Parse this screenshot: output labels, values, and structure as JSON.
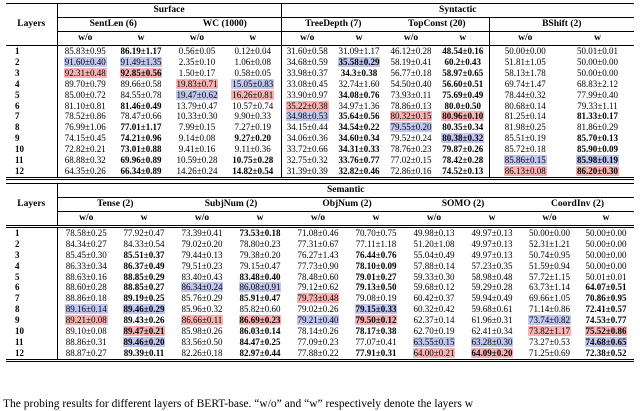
{
  "colors": {
    "highlight_red": "#f7b3b3",
    "highlight_blue": "#c1c7ee"
  },
  "caption": "The probing results for different layers of BERT-base. “w/o” and “w” respectively denote the layers w",
  "table_top": {
    "layers_label": "Layers",
    "groups": [
      {
        "label": "Surface"
      },
      {
        "label": "Syntactic"
      }
    ],
    "tasks": [
      "SentLen (6)",
      "WC (1000)",
      "TreeDepth (7)",
      "TopConst (20)",
      "BShift (2)"
    ],
    "subcols": [
      "w/o",
      "w"
    ],
    "rows": [
      {
        "layer": "1",
        "cells": [
          [
            "85.83±0.95",
            ""
          ],
          [
            "86.19±1.17",
            "b"
          ],
          [
            "0.56±0.05",
            ""
          ],
          [
            "0.12±0.04",
            ""
          ],
          [
            "31.60±0.58",
            ""
          ],
          [
            "31.09±1.17",
            ""
          ],
          [
            "46.12±0.28",
            ""
          ],
          [
            "48.54±0.16",
            "b"
          ],
          [
            "50.00±0.00",
            ""
          ],
          [
            "50.01±0.01",
            ""
          ]
        ]
      },
      {
        "layer": "2",
        "cells": [
          [
            "91.60±0.40",
            "u"
          ],
          [
            "91.49±1.35",
            "u"
          ],
          [
            "2.35±0.10",
            ""
          ],
          [
            "1.06±0.08",
            ""
          ],
          [
            "34.68±0.59",
            ""
          ],
          [
            "35.58±0.29",
            "bu"
          ],
          [
            "58.19±0.41",
            ""
          ],
          [
            "60.2±0.43",
            "b"
          ],
          [
            "51.81±1.05",
            ""
          ],
          [
            "50.00±0.00",
            ""
          ]
        ]
      },
      {
        "layer": "3",
        "cells": [
          [
            "92.31±0.48",
            "r"
          ],
          [
            "92.85±0.56",
            "br"
          ],
          [
            "1.50±0.17",
            ""
          ],
          [
            "0.58±0.05",
            ""
          ],
          [
            "33.98±0.37",
            ""
          ],
          [
            "34.3±0.38",
            "b"
          ],
          [
            "56.77±0.18",
            ""
          ],
          [
            "58.97±0.65",
            "b"
          ],
          [
            "58.13±1.78",
            ""
          ],
          [
            "50.00±0.00",
            ""
          ]
        ]
      },
      {
        "layer": "4",
        "cells": [
          [
            "89.70±0.79",
            ""
          ],
          [
            "89.66±0.58",
            ""
          ],
          [
            "19.83±0.71",
            "r"
          ],
          [
            "15.05±0.83",
            "u"
          ],
          [
            "33.08±0.45",
            ""
          ],
          [
            "32.74±1.60",
            ""
          ],
          [
            "54.50±0.40",
            ""
          ],
          [
            "56.60±0.51",
            "b"
          ],
          [
            "69.74±1.47",
            ""
          ],
          [
            "68.83±2.12",
            ""
          ]
        ]
      },
      {
        "layer": "5",
        "cells": [
          [
            "85.00±0.72",
            ""
          ],
          [
            "84.55±0.78",
            ""
          ],
          [
            "19.47±0.62",
            "u"
          ],
          [
            "16.26±0.81",
            "r"
          ],
          [
            "33.90±0.97",
            ""
          ],
          [
            "34.08±0.76",
            "b"
          ],
          [
            "73.93±0.11",
            ""
          ],
          [
            "75.69±0.49",
            "b"
          ],
          [
            "78.44±0.32",
            ""
          ],
          [
            "77.99±0.40",
            ""
          ]
        ]
      },
      {
        "layer": "6",
        "cells": [
          [
            "81.10±0.81",
            ""
          ],
          [
            "81.46±0.49",
            "b"
          ],
          [
            "13.79±0.47",
            ""
          ],
          [
            "10.57±0.74",
            ""
          ],
          [
            "35.22±0.38",
            "r"
          ],
          [
            "34.97±1.36",
            ""
          ],
          [
            "78.86±0.13",
            ""
          ],
          [
            "80.0±0.50",
            "b"
          ],
          [
            "80.68±0.14",
            ""
          ],
          [
            "79.33±1.11",
            ""
          ]
        ]
      },
      {
        "layer": "7",
        "cells": [
          [
            "78.52±0.86",
            ""
          ],
          [
            "78.47±0.66",
            ""
          ],
          [
            "10.33±0.30",
            ""
          ],
          [
            "9.90±0.33",
            ""
          ],
          [
            "34.98±0.53",
            "u"
          ],
          [
            "35.64±0.56",
            "b"
          ],
          [
            "80.32±0.15",
            "r"
          ],
          [
            "80.96±0.10",
            "br"
          ],
          [
            "81.25±0.14",
            ""
          ],
          [
            "81.33±0.17",
            "b"
          ]
        ]
      },
      {
        "layer": "8",
        "cells": [
          [
            "76.99±1.06",
            ""
          ],
          [
            "77.01±1.17",
            "b"
          ],
          [
            "7.99±0.15",
            ""
          ],
          [
            "7.27±0.19",
            ""
          ],
          [
            "34.15±0.44",
            ""
          ],
          [
            "34.54±0.22",
            "b"
          ],
          [
            "79.55±0.20",
            "u"
          ],
          [
            "80.35±0.34",
            "b"
          ],
          [
            "81.98±0.25",
            ""
          ],
          [
            "81.86±0.29",
            ""
          ]
        ]
      },
      {
        "layer": "9",
        "cells": [
          [
            "74.15±0.45",
            ""
          ],
          [
            "74.21±0.96",
            "b"
          ],
          [
            "9.14±0.08",
            ""
          ],
          [
            "9.27±0.20",
            "b"
          ],
          [
            "34.06±0.36",
            ""
          ],
          [
            "34.60±0.34",
            "b"
          ],
          [
            "79.52±0.24",
            ""
          ],
          [
            "80.38±0.32",
            "bu"
          ],
          [
            "85.51±0.19",
            ""
          ],
          [
            "85.70±0.13",
            "b"
          ]
        ]
      },
      {
        "layer": "10",
        "cells": [
          [
            "72.82±0.21",
            ""
          ],
          [
            "73.01±0.88",
            "b"
          ],
          [
            "9.41±0.16",
            ""
          ],
          [
            "9.11±0.36",
            ""
          ],
          [
            "33.72±0.66",
            ""
          ],
          [
            "34.31±0.33",
            "b"
          ],
          [
            "78.76±0.23",
            ""
          ],
          [
            "79.87±0.26",
            "b"
          ],
          [
            "85.72±0.18",
            ""
          ],
          [
            "85.90±0.09",
            "b"
          ]
        ]
      },
      {
        "layer": "11",
        "cells": [
          [
            "68.88±0.32",
            ""
          ],
          [
            "69.96±0.89",
            "b"
          ],
          [
            "10.59±0.28",
            ""
          ],
          [
            "10.75±0.28",
            "b"
          ],
          [
            "32.75±0.32",
            ""
          ],
          [
            "33.76±0.77",
            "b"
          ],
          [
            "77.02±0.15",
            ""
          ],
          [
            "78.42±0.28",
            "b"
          ],
          [
            "85.86±0.15",
            "u"
          ],
          [
            "85.98±0.19",
            "bu"
          ]
        ]
      },
      {
        "layer": "12",
        "cells": [
          [
            "64.35±0.26",
            ""
          ],
          [
            "66.34±0.89",
            "b"
          ],
          [
            "14.26±0.24",
            ""
          ],
          [
            "14.82±0.54",
            "b"
          ],
          [
            "31.39±0.39",
            ""
          ],
          [
            "32.82±0.46",
            "b"
          ],
          [
            "72.86±0.16",
            ""
          ],
          [
            "74.52±0.13",
            "b"
          ],
          [
            "86.13±0.08",
            "r"
          ],
          [
            "86.20±0.30",
            "br"
          ]
        ]
      }
    ]
  },
  "table_bottom": {
    "layers_label": "Layers",
    "groups": [
      {
        "label": "Semantic"
      }
    ],
    "tasks": [
      "Tense (2)",
      "SubjNum (2)",
      "ObjNum (2)",
      "SOMO (2)",
      "CoordInv (2)"
    ],
    "subcols": [
      "w/o",
      "w"
    ],
    "rows": [
      {
        "layer": "1",
        "cells": [
          [
            "78.58±0.25",
            ""
          ],
          [
            "77.92±0.47",
            ""
          ],
          [
            "73.39±0.41",
            ""
          ],
          [
            "73.53±0.18",
            "b"
          ],
          [
            "71.08±0.46",
            ""
          ],
          [
            "70.70±0.75",
            ""
          ],
          [
            "49.98±0.13",
            ""
          ],
          [
            "49.97±0.13",
            ""
          ],
          [
            "50.00±0.00",
            ""
          ],
          [
            "50.00±0.00",
            ""
          ]
        ]
      },
      {
        "layer": "2",
        "cells": [
          [
            "84.34±0.27",
            ""
          ],
          [
            "84.33±0.54",
            ""
          ],
          [
            "79.02±0.20",
            ""
          ],
          [
            "78.80±0.23",
            ""
          ],
          [
            "77.31±0.67",
            ""
          ],
          [
            "77.11±1.18",
            ""
          ],
          [
            "51.20±1.08",
            ""
          ],
          [
            "49.97±0.13",
            ""
          ],
          [
            "52.31±1.21",
            ""
          ],
          [
            "50.00±0.00",
            ""
          ]
        ]
      },
      {
        "layer": "3",
        "cells": [
          [
            "85.45±0.30",
            ""
          ],
          [
            "85.51±0.37",
            "b"
          ],
          [
            "79.44±0.13",
            ""
          ],
          [
            "79.38±0.20",
            ""
          ],
          [
            "76.27±1.43",
            ""
          ],
          [
            "76.44±0.76",
            "b"
          ],
          [
            "55.04±0.49",
            ""
          ],
          [
            "49.97±0.13",
            ""
          ],
          [
            "50.74±0.95",
            ""
          ],
          [
            "50.00±0.00",
            ""
          ]
        ]
      },
      {
        "layer": "4",
        "cells": [
          [
            "86.33±0.34",
            ""
          ],
          [
            "86.37±0.49",
            "b"
          ],
          [
            "79.51±0.23",
            ""
          ],
          [
            "79.15±0.47",
            ""
          ],
          [
            "77.73±0.90",
            ""
          ],
          [
            "78.10±0.09",
            "b"
          ],
          [
            "57.88±0.14",
            ""
          ],
          [
            "57.23±0.35",
            ""
          ],
          [
            "51.59±0.94",
            ""
          ],
          [
            "50.00±0.00",
            ""
          ]
        ]
      },
      {
        "layer": "5",
        "cells": [
          [
            "88.63±0.16",
            ""
          ],
          [
            "88.85±0.29",
            "b"
          ],
          [
            "83.40±0.43",
            ""
          ],
          [
            "83.48±0.40",
            "b"
          ],
          [
            "78.48±0.60",
            ""
          ],
          [
            "79.01±0.27",
            "b"
          ],
          [
            "59.33±0.30",
            ""
          ],
          [
            "58.98±0.48",
            ""
          ],
          [
            "57.72±1.15",
            ""
          ],
          [
            "50.01±0.01",
            ""
          ]
        ]
      },
      {
        "layer": "6",
        "cells": [
          [
            "88.60±0.28",
            ""
          ],
          [
            "88.85±0.27",
            "b"
          ],
          [
            "86.34±0.24",
            "u"
          ],
          [
            "86.08±0.91",
            "u"
          ],
          [
            "79.12±0.62",
            ""
          ],
          [
            "79.13±0.50",
            "b"
          ],
          [
            "59.68±0.12",
            ""
          ],
          [
            "59.29±0.28",
            ""
          ],
          [
            "63.73±1.14",
            ""
          ],
          [
            "64.07±0.51",
            "b"
          ]
        ]
      },
      {
        "layer": "7",
        "cells": [
          [
            "88.86±0.18",
            ""
          ],
          [
            "89.19±0.25",
            "b"
          ],
          [
            "85.76±0.29",
            ""
          ],
          [
            "85.91±0.47",
            "b"
          ],
          [
            "79.73±0.48",
            "r"
          ],
          [
            "79.08±0.19",
            ""
          ],
          [
            "60.42±0.37",
            ""
          ],
          [
            "59.94±0.49",
            ""
          ],
          [
            "69.66±1.05",
            ""
          ],
          [
            "70.86±0.95",
            "b"
          ]
        ]
      },
      {
        "layer": "8",
        "cells": [
          [
            "89.16±0.14",
            "u"
          ],
          [
            "89.46±0.29",
            "bu"
          ],
          [
            "85.96±0.32",
            ""
          ],
          [
            "85.82±0.60",
            ""
          ],
          [
            "79.02±0.26",
            ""
          ],
          [
            "79.15±0.33",
            "bu"
          ],
          [
            "60.32±0.42",
            ""
          ],
          [
            "59.68±0.61",
            ""
          ],
          [
            "71.14±0.86",
            ""
          ],
          [
            "72.41±0.57",
            "b"
          ]
        ]
      },
      {
        "layer": "9",
        "cells": [
          [
            "89.21±0.08",
            "r"
          ],
          [
            "89.43±0.26",
            "b"
          ],
          [
            "86.66±0.11",
            "r"
          ],
          [
            "86.69±0.23",
            "br"
          ],
          [
            "79.21±0.40",
            "u"
          ],
          [
            "79.50±0.12",
            "br"
          ],
          [
            "62.37±0.14",
            ""
          ],
          [
            "61.96±0.31",
            ""
          ],
          [
            "73.74±0.82",
            "u"
          ],
          [
            "74.53±0.77",
            "b"
          ]
        ]
      },
      {
        "layer": "10",
        "cells": [
          [
            "89.10±0.08",
            ""
          ],
          [
            "89.47±0.21",
            "br"
          ],
          [
            "85.98±0.26",
            ""
          ],
          [
            "86.03±0.14",
            "b"
          ],
          [
            "78.14±0.26",
            ""
          ],
          [
            "78.17±0.38",
            "b"
          ],
          [
            "62.70±0.19",
            ""
          ],
          [
            "62.41±0.34",
            ""
          ],
          [
            "73.82±1.17",
            "r"
          ],
          [
            "75.52±0.86",
            "br"
          ]
        ]
      },
      {
        "layer": "11",
        "cells": [
          [
            "88.86±0.31",
            ""
          ],
          [
            "89.46±0.20",
            "bu"
          ],
          [
            "83.56±0.50",
            ""
          ],
          [
            "84.47±0.25",
            "b"
          ],
          [
            "77.09±0.23",
            ""
          ],
          [
            "77.07±0.41",
            ""
          ],
          [
            "63.55±0.15",
            "u"
          ],
          [
            "63.28±0.30",
            "u"
          ],
          [
            "73.27±0.53",
            ""
          ],
          [
            "74.68±0.65",
            "bu"
          ]
        ]
      },
      {
        "layer": "12",
        "cells": [
          [
            "88.87±0.27",
            ""
          ],
          [
            "89.39±0.11",
            "b"
          ],
          [
            "82.26±0.18",
            ""
          ],
          [
            "82.97±0.44",
            "b"
          ],
          [
            "77.88±0.22",
            ""
          ],
          [
            "77.91±0.31",
            "b"
          ],
          [
            "64.00±0.21",
            "r"
          ],
          [
            "64.09±0.20",
            "br"
          ],
          [
            "71.25±0.69",
            ""
          ],
          [
            "72.38±0.52",
            "b"
          ]
        ]
      }
    ]
  }
}
